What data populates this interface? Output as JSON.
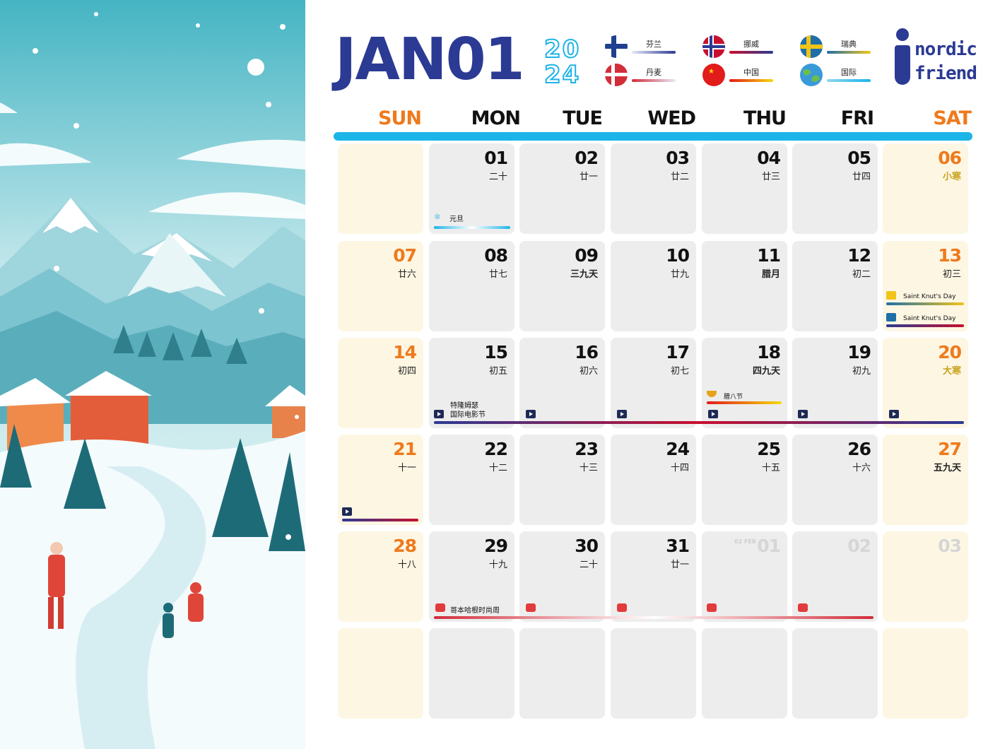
{
  "header": {
    "month": "JAN01",
    "year": "2024"
  },
  "legend": [
    {
      "label": "芬兰",
      "flag": "finland-flag-icon",
      "bar": [
        "#e8e8f5",
        "#2b3a93"
      ]
    },
    {
      "label": "丹麦",
      "flag": "denmark-flag-icon",
      "bar": [
        "#d32d3a",
        "#e8e8f5"
      ]
    },
    {
      "label": "挪威",
      "flag": "norway-flag-icon",
      "bar": [
        "#c8102e",
        "#2b3a93"
      ]
    },
    {
      "label": "中国",
      "flag": "china-flag-icon",
      "bar": [
        "#e21b1b",
        "#f5d90a"
      ]
    },
    {
      "label": "瑞典",
      "flag": "sweden-flag-icon",
      "bar": [
        "#1e6fa8",
        "#f0c419"
      ]
    },
    {
      "label": "国际",
      "flag": "globe-icon",
      "bar": [
        "#8fd6f0",
        "#1bb5e8"
      ]
    }
  ],
  "logo": {
    "line1": "nordic",
    "line2": "friend"
  },
  "weekdays": [
    "SUN",
    "MON",
    "TUE",
    "WED",
    "THU",
    "FRI",
    "SAT"
  ],
  "weeks": [
    [
      {
        "day": "",
        "lunar": ""
      },
      {
        "day": "01",
        "lunar": "二十"
      },
      {
        "day": "02",
        "lunar": "廿一"
      },
      {
        "day": "03",
        "lunar": "廿二"
      },
      {
        "day": "04",
        "lunar": "廿三"
      },
      {
        "day": "05",
        "lunar": "廿四"
      },
      {
        "day": "06",
        "lunar": "小寒"
      }
    ],
    [
      {
        "day": "07",
        "lunar": "廿六"
      },
      {
        "day": "08",
        "lunar": "廿七"
      },
      {
        "day": "09",
        "lunar": "三九天"
      },
      {
        "day": "10",
        "lunar": "廿九"
      },
      {
        "day": "11",
        "lunar": "腊月"
      },
      {
        "day": "12",
        "lunar": "初二"
      },
      {
        "day": "13",
        "lunar": "初三"
      }
    ],
    [
      {
        "day": "14",
        "lunar": "初四"
      },
      {
        "day": "15",
        "lunar": "初五"
      },
      {
        "day": "16",
        "lunar": "初六"
      },
      {
        "day": "17",
        "lunar": "初七"
      },
      {
        "day": "18",
        "lunar": "四九天"
      },
      {
        "day": "19",
        "lunar": "初九"
      },
      {
        "day": "20",
        "lunar": "大寒"
      }
    ],
    [
      {
        "day": "21",
        "lunar": "十一"
      },
      {
        "day": "22",
        "lunar": "十二"
      },
      {
        "day": "23",
        "lunar": "十三"
      },
      {
        "day": "24",
        "lunar": "十四"
      },
      {
        "day": "25",
        "lunar": "十五"
      },
      {
        "day": "26",
        "lunar": "十六"
      },
      {
        "day": "27",
        "lunar": "五九天"
      }
    ],
    [
      {
        "day": "28",
        "lunar": "十八"
      },
      {
        "day": "29",
        "lunar": "十九"
      },
      {
        "day": "30",
        "lunar": "二十"
      },
      {
        "day": "31",
        "lunar": "廿一"
      },
      {
        "day": "01",
        "lunar": "",
        "next_month": true,
        "tag": "02 FEB"
      },
      {
        "day": "02",
        "lunar": "",
        "next_month": true
      },
      {
        "day": "03",
        "lunar": "",
        "next_month": true
      }
    ],
    [
      {
        "day": "",
        "lunar": ""
      },
      {
        "day": "",
        "lunar": ""
      },
      {
        "day": "",
        "lunar": ""
      },
      {
        "day": "",
        "lunar": ""
      },
      {
        "day": "",
        "lunar": ""
      },
      {
        "day": "",
        "lunar": ""
      },
      {
        "day": "",
        "lunar": ""
      }
    ]
  ],
  "events": {
    "new_year": "元旦",
    "saint_knut_1": "Saint Knut's Day",
    "saint_knut_2": "Saint Knut's Day",
    "laba": "腊八节",
    "film_fest_line1": "特隆姆瑟",
    "film_fest_line2": "国际电影节",
    "fashion_week": "哥本哈根时尚周"
  },
  "colors": {
    "title": "#2b3a93",
    "weekend": "#ee7a1d",
    "accent": "#1bb5e8",
    "weekday_cell": "#ededed",
    "weekend_cell": "#fdf6e3"
  }
}
